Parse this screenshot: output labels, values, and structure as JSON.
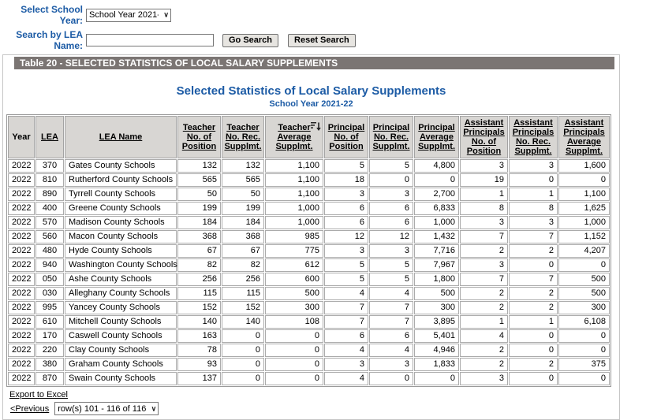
{
  "controls": {
    "school_year_label": "Select School Year:",
    "school_year_value": "School Year 2021-22",
    "search_label": "Search by LEA Name:",
    "search_value": "",
    "go_search_label": "Go Search",
    "reset_search_label": "Reset Search"
  },
  "banner": {
    "title": "Table 20 - SELECTED STATISTICS OF LOCAL SALARY SUPPLEMENTS"
  },
  "report": {
    "title": "Selected Statistics of Local Salary Supplements",
    "subtitle": "School Year 2021-22"
  },
  "icons": {
    "sort": "sort-descending-icon",
    "select_arrow": "chevron-down-icon"
  },
  "colors": {
    "accent_blue": "#1c5ba5",
    "banner_gray": "#7b7573",
    "header_cell_bg": "#d8d6d3"
  },
  "table": {
    "columns": [
      {
        "key": "year",
        "label": "Year",
        "sortable": false,
        "sorted": false
      },
      {
        "key": "lea",
        "label": "LEA",
        "sortable": true,
        "sorted": false
      },
      {
        "key": "lea-name",
        "label": "LEA Name",
        "sortable": true,
        "sorted": false
      },
      {
        "key": "teacher-no-of-position",
        "label": "Teacher\nNo. of\nPosition",
        "sortable": true,
        "sorted": false
      },
      {
        "key": "teacher-no-rec-supplmt",
        "label": "Teacher\nNo. Rec.\nSupplmt.",
        "sortable": true,
        "sorted": false
      },
      {
        "key": "teacher-average-supplmt",
        "label": "Teacher\nAverage\nSupplmt.",
        "sortable": true,
        "sorted": true
      },
      {
        "key": "principal-no-of-position",
        "label": "Principal\nNo. of\nPosition",
        "sortable": true,
        "sorted": false
      },
      {
        "key": "principal-no-rec-supplmt",
        "label": "Principal\nNo. Rec.\nSupplmt.",
        "sortable": true,
        "sorted": false
      },
      {
        "key": "principal-average-supplmt",
        "label": "Principal\nAverage\nSupplmt.",
        "sortable": true,
        "sorted": false
      },
      {
        "key": "assistant-principals-no-of-position",
        "label": "Assistant\nPrincipals\nNo. of\nPosition",
        "sortable": true,
        "sorted": false
      },
      {
        "key": "assistant-principals-no-rec-supplmt",
        "label": "Assistant\nPrincipals\nNo. Rec.\nSupplmt.",
        "sortable": true,
        "sorted": false
      },
      {
        "key": "assistant-principals-average-supplmt",
        "label": "Assistant\nPrincipals\nAverage\nSupplmt.",
        "sortable": true,
        "sorted": false
      }
    ],
    "rows": [
      [
        "2022",
        "370",
        "Gates County Schools",
        "132",
        "132",
        "1,100",
        "5",
        "5",
        "4,800",
        "3",
        "3",
        "1,600"
      ],
      [
        "2022",
        "810",
        "Rutherford County Schools",
        "565",
        "565",
        "1,100",
        "18",
        "0",
        "0",
        "19",
        "0",
        "0"
      ],
      [
        "2022",
        "890",
        "Tyrrell County Schools",
        "50",
        "50",
        "1,100",
        "3",
        "3",
        "2,700",
        "1",
        "1",
        "1,100"
      ],
      [
        "2022",
        "400",
        "Greene County Schools",
        "199",
        "199",
        "1,000",
        "6",
        "6",
        "6,833",
        "8",
        "8",
        "1,625"
      ],
      [
        "2022",
        "570",
        "Madison County Schools",
        "184",
        "184",
        "1,000",
        "6",
        "6",
        "1,000",
        "3",
        "3",
        "1,000"
      ],
      [
        "2022",
        "560",
        "Macon County Schools",
        "368",
        "368",
        "985",
        "12",
        "12",
        "1,432",
        "7",
        "7",
        "1,152"
      ],
      [
        "2022",
        "480",
        "Hyde County Schools",
        "67",
        "67",
        "775",
        "3",
        "3",
        "7,716",
        "2",
        "2",
        "4,207"
      ],
      [
        "2022",
        "940",
        "Washington County Schools",
        "82",
        "82",
        "612",
        "5",
        "5",
        "7,967",
        "3",
        "0",
        "0"
      ],
      [
        "2022",
        "050",
        "Ashe County Schools",
        "256",
        "256",
        "600",
        "5",
        "5",
        "1,800",
        "7",
        "7",
        "500"
      ],
      [
        "2022",
        "030",
        "Alleghany County Schools",
        "115",
        "115",
        "500",
        "4",
        "4",
        "500",
        "2",
        "2",
        "500"
      ],
      [
        "2022",
        "995",
        "Yancey County Schools",
        "152",
        "152",
        "300",
        "7",
        "7",
        "300",
        "2",
        "2",
        "300"
      ],
      [
        "2022",
        "610",
        "Mitchell County Schools",
        "140",
        "140",
        "108",
        "7",
        "7",
        "3,895",
        "1",
        "1",
        "6,108"
      ],
      [
        "2022",
        "170",
        "Caswell County Schools",
        "163",
        "0",
        "0",
        "6",
        "6",
        "5,401",
        "4",
        "0",
        "0"
      ],
      [
        "2022",
        "220",
        "Clay County Schools",
        "78",
        "0",
        "0",
        "4",
        "4",
        "4,946",
        "2",
        "0",
        "0"
      ],
      [
        "2022",
        "380",
        "Graham County Schools",
        "93",
        "0",
        "0",
        "3",
        "3",
        "1,833",
        "2",
        "2",
        "375"
      ],
      [
        "2022",
        "870",
        "Swain County Schools",
        "137",
        "0",
        "0",
        "4",
        "0",
        "0",
        "3",
        "0",
        "0"
      ]
    ]
  },
  "footer": {
    "export_label": "Export to Excel",
    "previous_label": "<Previous",
    "pager_value": "row(s) 101 - 116 of 116"
  }
}
